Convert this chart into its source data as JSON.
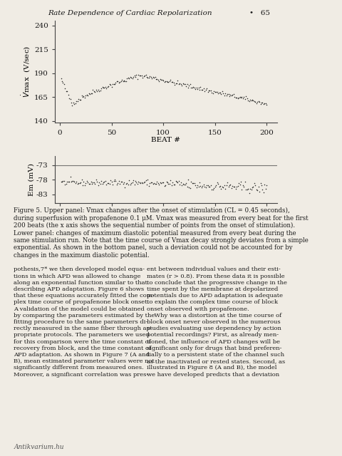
{
  "title": "Rate Dependence of Cardiac Repolarization",
  "page_number": "65",
  "upper_panel": {
    "ylabel": "V̇max  (V/sec)",
    "xlabel": "BEAT #",
    "yticks": [
      140,
      165,
      190,
      215,
      240
    ],
    "xticks": [
      0,
      50,
      100,
      150,
      200
    ],
    "ylim": [
      138,
      245
    ],
    "xlim": [
      -5,
      210
    ]
  },
  "lower_panel": {
    "ylabel": "Em (mV)",
    "yticks": [
      -73,
      -78,
      -83
    ],
    "ylim": [
      -86,
      -70
    ],
    "xlim": [
      -5,
      210
    ]
  },
  "page_bg": "#f0ece4",
  "chart_bg": "#f0ece4",
  "right_bg": "#c8a878",
  "line_color": "#1a1a1a",
  "dot_color": "#1a1a1a",
  "caption": "Figure 5. Upper panel: V̇max changes after the onset of stimulation (CL = 0.45 seconds),\nduring superfusion with propafenone 0.1 μM. Vmax was measured from every beat for the first\n200 beats (the x axis shows the sequential number of points from the onset of stimulation).\nLower panel: changes of maximum diastolic potential measured from every beat during the\nsame stimulation run. Note that the time course of Vmax decay strongly deviates from a simple\nexponential. As shown in the bottom panel, such a deviation could not be accounted for by\nchanges in the maximum diastolic potential.",
  "body_text_left": "pothesis,7* we then developed model equa-\ntions in which APD was allowed to change\nalong an exponential function similar to that\ndescribing APD adaptation. Figure 6 shows\nthat these equations accurately fitted the com-\nplex time course of propafenone block onset.\nA validation of the model could be obtained\nby comparing the parameters estimated by the\nfitting procedure to the same parameters di-\nrectly measured in the same fiber through ap-\npropriate protocols. The parameters we used\nfor this comparison were the time constant of\nrecovery from block, and the time constant of\nAPD adaptation. As shown in Figure 7 (A and\nB), mean estimated parameter values were not\nsignificantly different from measured ones.\nMoreover, a significant correlation was pres-",
  "body_text_right": "ent between individual values and their esti-\nmates (r > 0.8). From these data it is possible\nto conclude that the progressive change in the\ntime spent by the membrane at depolarized\npotentials due to APD adaptation is adequate\nto explain the complex time course of block\nonset observed with propafenone.\n    Why was a distortion at the time course of\nblock onset never observed in the numerous\nstudies evaluating use dependency by action\npotential recordings? First, as already men-\ntioned, the influence of APD changes will be\nsignificant only for drugs that bind preferen-\ntially to a persistent state of the channel such\nas the inactivated or rested states. Second, as\nillustrated in Figure 8 (A and B), the model\nwe have developed predicts that a deviation"
}
